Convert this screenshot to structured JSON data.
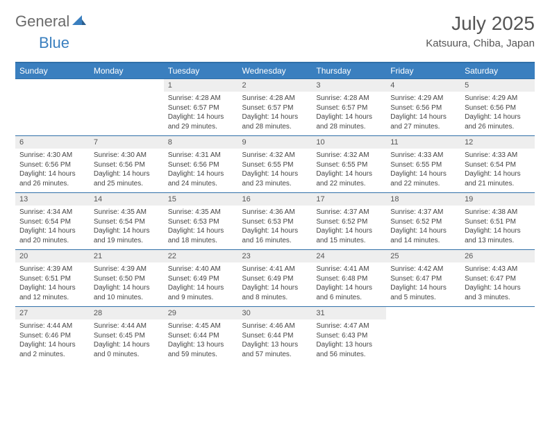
{
  "brand": {
    "part1": "General",
    "part2": "Blue"
  },
  "title": {
    "month": "July 2025",
    "location": "Katsuura, Chiba, Japan"
  },
  "colors": {
    "header_bg": "#3a7fbf",
    "header_text": "#ffffff",
    "daynum_bg": "#eeeeee",
    "rule": "#2f6fa8",
    "logo_gray": "#6a6a6a",
    "logo_blue": "#3a7fbf",
    "body_text": "#444444",
    "page_bg": "#ffffff"
  },
  "dayHeaders": [
    "Sunday",
    "Monday",
    "Tuesday",
    "Wednesday",
    "Thursday",
    "Friday",
    "Saturday"
  ],
  "weeks": [
    [
      null,
      null,
      {
        "n": "1",
        "sunrise": "4:28 AM",
        "sunset": "6:57 PM",
        "daylight": "14 hours and 29 minutes."
      },
      {
        "n": "2",
        "sunrise": "4:28 AM",
        "sunset": "6:57 PM",
        "daylight": "14 hours and 28 minutes."
      },
      {
        "n": "3",
        "sunrise": "4:28 AM",
        "sunset": "6:57 PM",
        "daylight": "14 hours and 28 minutes."
      },
      {
        "n": "4",
        "sunrise": "4:29 AM",
        "sunset": "6:56 PM",
        "daylight": "14 hours and 27 minutes."
      },
      {
        "n": "5",
        "sunrise": "4:29 AM",
        "sunset": "6:56 PM",
        "daylight": "14 hours and 26 minutes."
      }
    ],
    [
      {
        "n": "6",
        "sunrise": "4:30 AM",
        "sunset": "6:56 PM",
        "daylight": "14 hours and 26 minutes."
      },
      {
        "n": "7",
        "sunrise": "4:30 AM",
        "sunset": "6:56 PM",
        "daylight": "14 hours and 25 minutes."
      },
      {
        "n": "8",
        "sunrise": "4:31 AM",
        "sunset": "6:56 PM",
        "daylight": "14 hours and 24 minutes."
      },
      {
        "n": "9",
        "sunrise": "4:32 AM",
        "sunset": "6:55 PM",
        "daylight": "14 hours and 23 minutes."
      },
      {
        "n": "10",
        "sunrise": "4:32 AM",
        "sunset": "6:55 PM",
        "daylight": "14 hours and 22 minutes."
      },
      {
        "n": "11",
        "sunrise": "4:33 AM",
        "sunset": "6:55 PM",
        "daylight": "14 hours and 22 minutes."
      },
      {
        "n": "12",
        "sunrise": "4:33 AM",
        "sunset": "6:54 PM",
        "daylight": "14 hours and 21 minutes."
      }
    ],
    [
      {
        "n": "13",
        "sunrise": "4:34 AM",
        "sunset": "6:54 PM",
        "daylight": "14 hours and 20 minutes."
      },
      {
        "n": "14",
        "sunrise": "4:35 AM",
        "sunset": "6:54 PM",
        "daylight": "14 hours and 19 minutes."
      },
      {
        "n": "15",
        "sunrise": "4:35 AM",
        "sunset": "6:53 PM",
        "daylight": "14 hours and 18 minutes."
      },
      {
        "n": "16",
        "sunrise": "4:36 AM",
        "sunset": "6:53 PM",
        "daylight": "14 hours and 16 minutes."
      },
      {
        "n": "17",
        "sunrise": "4:37 AM",
        "sunset": "6:52 PM",
        "daylight": "14 hours and 15 minutes."
      },
      {
        "n": "18",
        "sunrise": "4:37 AM",
        "sunset": "6:52 PM",
        "daylight": "14 hours and 14 minutes."
      },
      {
        "n": "19",
        "sunrise": "4:38 AM",
        "sunset": "6:51 PM",
        "daylight": "14 hours and 13 minutes."
      }
    ],
    [
      {
        "n": "20",
        "sunrise": "4:39 AM",
        "sunset": "6:51 PM",
        "daylight": "14 hours and 12 minutes."
      },
      {
        "n": "21",
        "sunrise": "4:39 AM",
        "sunset": "6:50 PM",
        "daylight": "14 hours and 10 minutes."
      },
      {
        "n": "22",
        "sunrise": "4:40 AM",
        "sunset": "6:49 PM",
        "daylight": "14 hours and 9 minutes."
      },
      {
        "n": "23",
        "sunrise": "4:41 AM",
        "sunset": "6:49 PM",
        "daylight": "14 hours and 8 minutes."
      },
      {
        "n": "24",
        "sunrise": "4:41 AM",
        "sunset": "6:48 PM",
        "daylight": "14 hours and 6 minutes."
      },
      {
        "n": "25",
        "sunrise": "4:42 AM",
        "sunset": "6:47 PM",
        "daylight": "14 hours and 5 minutes."
      },
      {
        "n": "26",
        "sunrise": "4:43 AM",
        "sunset": "6:47 PM",
        "daylight": "14 hours and 3 minutes."
      }
    ],
    [
      {
        "n": "27",
        "sunrise": "4:44 AM",
        "sunset": "6:46 PM",
        "daylight": "14 hours and 2 minutes."
      },
      {
        "n": "28",
        "sunrise": "4:44 AM",
        "sunset": "6:45 PM",
        "daylight": "14 hours and 0 minutes."
      },
      {
        "n": "29",
        "sunrise": "4:45 AM",
        "sunset": "6:44 PM",
        "daylight": "13 hours and 59 minutes."
      },
      {
        "n": "30",
        "sunrise": "4:46 AM",
        "sunset": "6:44 PM",
        "daylight": "13 hours and 57 minutes."
      },
      {
        "n": "31",
        "sunrise": "4:47 AM",
        "sunset": "6:43 PM",
        "daylight": "13 hours and 56 minutes."
      },
      null,
      null
    ]
  ],
  "labels": {
    "sunrise": "Sunrise: ",
    "sunset": "Sunset: ",
    "daylight": "Daylight: "
  }
}
